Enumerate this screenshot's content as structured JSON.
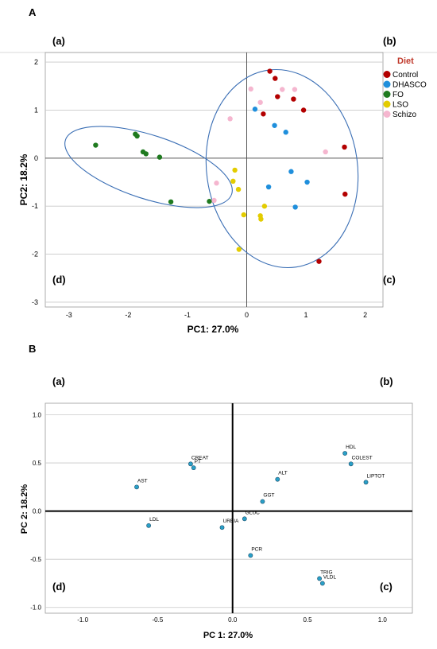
{
  "panels": [
    {
      "letter": "A",
      "quadrant_labels": {
        "a": "(a)",
        "b": "(b)",
        "c": "(c)",
        "d": "(d)"
      },
      "chart_data": {
        "type": "scatter",
        "xlabel": "PC1: 27.0%",
        "ylabel": "PC2: 18.2%",
        "xlim": [
          -3.4,
          2.3
        ],
        "ylim": [
          -3.1,
          2.2
        ],
        "xticks": [
          -3,
          -2,
          -1,
          0,
          1,
          2
        ],
        "yticks": [
          2,
          1,
          0,
          -1,
          -2,
          -3
        ],
        "grid": "horizontal",
        "legend": {
          "title": "Diet",
          "placement": "top-right"
        },
        "series": [
          {
            "name": "Control",
            "color": "#b30000",
            "points": [
              [
                0.39,
                1.81
              ],
              [
                0.48,
                1.66
              ],
              [
                0.52,
                1.28
              ],
              [
                0.79,
                1.23
              ],
              [
                0.96,
                1.0
              ],
              [
                0.28,
                0.92
              ],
              [
                1.65,
                0.23
              ],
              [
                1.66,
                -0.75
              ],
              [
                1.22,
                -2.15
              ]
            ]
          },
          {
            "name": "DHASCO",
            "color": "#1f8fdc",
            "points": [
              [
                0.14,
                1.02
              ],
              [
                0.47,
                0.68
              ],
              [
                0.66,
                0.54
              ],
              [
                0.75,
                -0.28
              ],
              [
                1.02,
                -0.5
              ],
              [
                0.82,
                -1.02
              ],
              [
                0.37,
                -0.6
              ]
            ]
          },
          {
            "name": "FO",
            "color": "#1f7a1f",
            "points": [
              [
                -2.55,
                0.27
              ],
              [
                -1.88,
                0.5
              ],
              [
                -1.85,
                0.46
              ],
              [
                -1.75,
                0.13
              ],
              [
                -1.7,
                0.09
              ],
              [
                -1.47,
                0.02
              ],
              [
                -1.28,
                -0.91
              ],
              [
                -0.63,
                -0.9
              ]
            ]
          },
          {
            "name": "LSO",
            "color": "#e3cc00",
            "points": [
              [
                -0.2,
                -0.25
              ],
              [
                -0.23,
                -0.48
              ],
              [
                -0.14,
                -0.65
              ],
              [
                -0.05,
                -1.18
              ],
              [
                0.23,
                -1.2
              ],
              [
                0.24,
                -1.27
              ],
              [
                0.3,
                -1.0
              ],
              [
                -0.13,
                -1.9
              ]
            ]
          },
          {
            "name": "Schizo",
            "color": "#f5b6cf",
            "points": [
              [
                0.07,
                1.44
              ],
              [
                0.23,
                1.16
              ],
              [
                -0.28,
                0.82
              ],
              [
                0.6,
                1.43
              ],
              [
                0.81,
                1.43
              ],
              [
                1.33,
                0.13
              ],
              [
                -0.51,
                -0.52
              ],
              [
                -0.55,
                -0.88
              ]
            ]
          }
        ]
      }
    },
    {
      "letter": "B",
      "quadrant_labels": {
        "a": "(a)",
        "b": "(b)",
        "c": "(c)",
        "d": "(d)"
      },
      "chart_data": {
        "type": "scatter",
        "xlabel": "PC 1: 27.0%",
        "ylabel": "PC 2: 18.2%",
        "xlim": [
          -1.25,
          1.2
        ],
        "ylim": [
          -1.06,
          1.12
        ],
        "xticks": [
          "-1.0",
          "-0.5",
          "0.0",
          "0.5",
          "1.0"
        ],
        "xtick_values": [
          -1.0,
          -0.5,
          0.0,
          0.5,
          1.0
        ],
        "yticks": [
          "1.0",
          "0.5",
          "0.0",
          "-0.5",
          "-1.0"
        ],
        "ytick_values": [
          1.0,
          0.5,
          0.0,
          -0.5,
          -1.0
        ],
        "grid": "horizontal",
        "point_color": "#2aa0c8",
        "points": [
          {
            "label": "AST",
            "x": -0.64,
            "y": 0.25
          },
          {
            "label": "CREAT",
            "x": -0.28,
            "y": 0.49
          },
          {
            "label": "PT",
            "x": -0.26,
            "y": 0.45
          },
          {
            "label": "LDL",
            "x": -0.56,
            "y": -0.15
          },
          {
            "label": "UREIA",
            "x": -0.07,
            "y": -0.17
          },
          {
            "label": "GLUC",
            "x": 0.08,
            "y": -0.08
          },
          {
            "label": "GGT",
            "x": 0.2,
            "y": 0.1
          },
          {
            "label": "ALT",
            "x": 0.3,
            "y": 0.33
          },
          {
            "label": "PCR",
            "x": 0.12,
            "y": -0.46
          },
          {
            "label": "HDL",
            "x": 0.75,
            "y": 0.6
          },
          {
            "label": "COLEST",
            "x": 0.79,
            "y": 0.49
          },
          {
            "label": "LIPTOT",
            "x": 0.89,
            "y": 0.3
          },
          {
            "label": "TRIG",
            "x": 0.58,
            "y": -0.7
          },
          {
            "label": "VLDL",
            "x": 0.6,
            "y": -0.75
          }
        ]
      }
    }
  ]
}
